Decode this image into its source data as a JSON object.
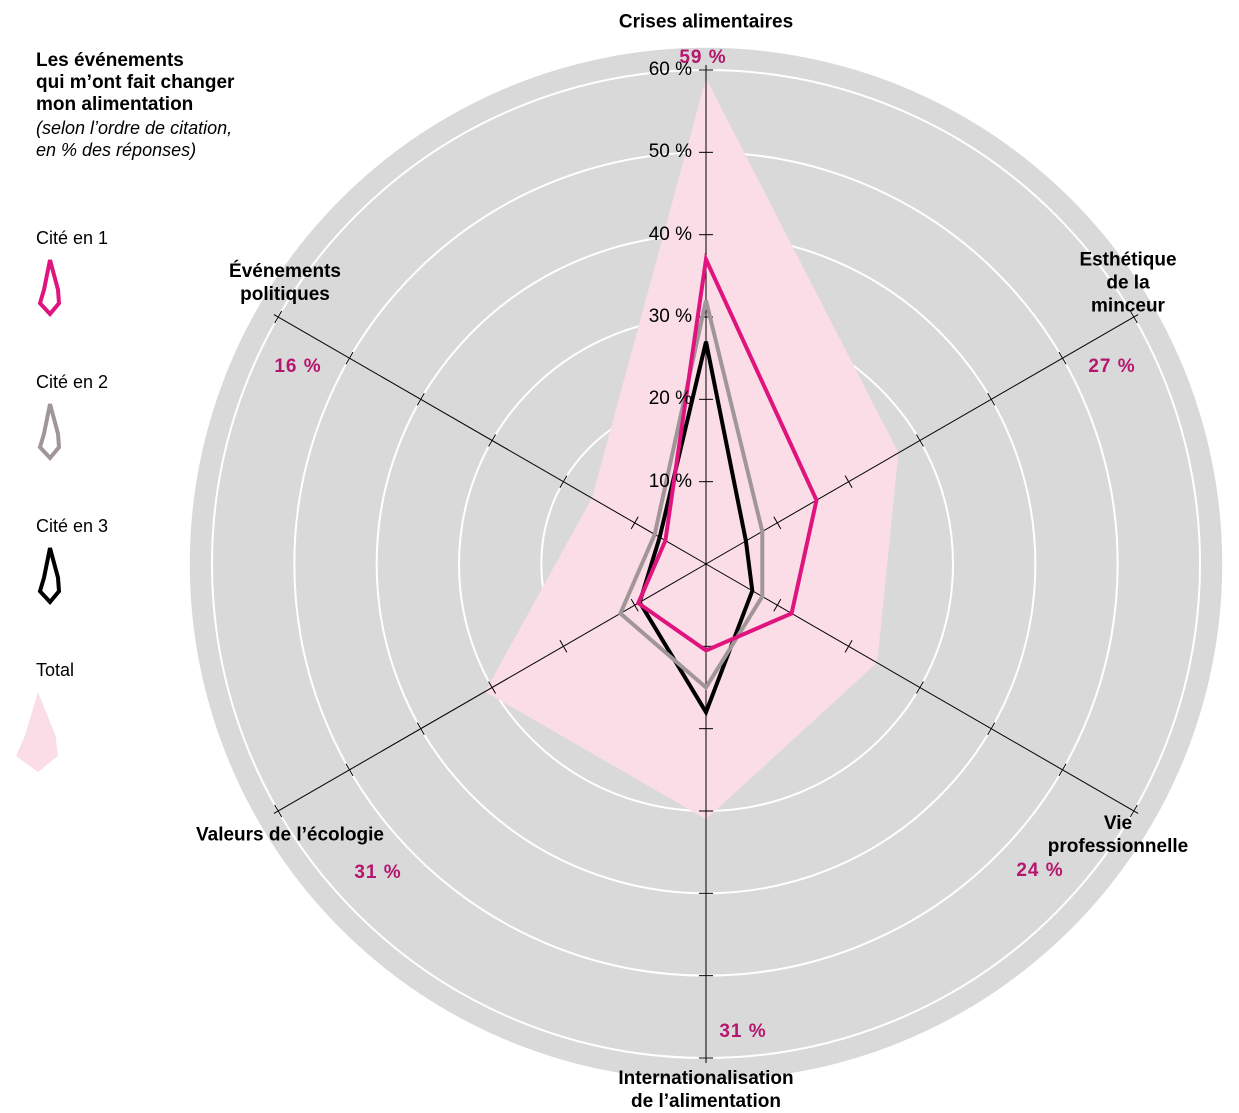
{
  "chart_data": {
    "type": "radar",
    "title": "Les événements\nqui m’ont fait changer\nmon alimentation",
    "subtitle": "(selon l’ordre de citation,\nen % des réponses)",
    "categories": [
      "Crises alimentaires",
      "Esthétique\nde la minceur",
      "Vie professionnelle",
      "Internationalisation\nde l’alimentation",
      "Valeurs de l’écologie",
      "Événements\npolitiques"
    ],
    "ylim": [
      0,
      60
    ],
    "yticks": [
      {
        "value": 10,
        "label": "10 %"
      },
      {
        "value": 20,
        "label": "20 %"
      },
      {
        "value": 30,
        "label": "30 %"
      },
      {
        "value": 40,
        "label": "40 %"
      },
      {
        "value": 50,
        "label": "50 %"
      },
      {
        "value": 60,
        "label": "60 %"
      }
    ],
    "grid": true,
    "series": [
      {
        "name": "Total",
        "color": "#fadde6",
        "filled": true,
        "values": [
          59,
          27,
          24,
          31,
          31,
          16
        ],
        "value_labels": [
          "59 %",
          "27 %",
          "24 %",
          "31 %",
          "31 %",
          "16 %"
        ]
      },
      {
        "name": "Cité en 3",
        "color": "#000000",
        "values": [
          27,
          5.6,
          6.5,
          18,
          9.3,
          6.5
        ]
      },
      {
        "name": "Cité en 2",
        "color": "#a09698",
        "values": [
          32,
          7.9,
          7.9,
          15,
          12,
          7.2
        ]
      },
      {
        "name": "Cité en 1",
        "color": "#e0147f",
        "values": [
          37,
          15.5,
          12,
          10.5,
          9.5,
          5.7
        ]
      }
    ]
  }
}
